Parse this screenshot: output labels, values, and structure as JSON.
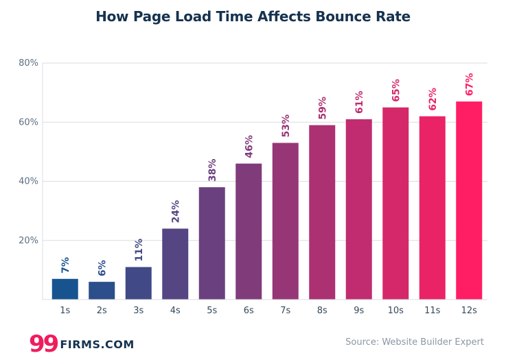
{
  "colors": {
    "title": "#16324f",
    "grid": "#d8dde2",
    "bar_start": "#17538f",
    "bar_end": "#ff1e63",
    "logo_accent": "#ef1d5d",
    "source": "#8b97a3"
  },
  "chart_data": {
    "type": "bar",
    "title": "How Page Load Time Affects Bounce Rate",
    "xlabel": "",
    "ylabel": "",
    "categories": [
      "1s",
      "2s",
      "3s",
      "4s",
      "5s",
      "6s",
      "7s",
      "8s",
      "9s",
      "10s",
      "11s",
      "12s"
    ],
    "values": [
      7,
      6,
      11,
      24,
      38,
      46,
      53,
      59,
      61,
      65,
      62,
      67
    ],
    "value_labels": [
      "7%",
      "6%",
      "11%",
      "24%",
      "38%",
      "46%",
      "53%",
      "59%",
      "61%",
      "65%",
      "62%",
      "67%"
    ],
    "ylim": [
      0,
      80
    ],
    "yticks": [
      20,
      40,
      60,
      80
    ],
    "ytick_labels": [
      "20%",
      "40%",
      "60%",
      "80%"
    ],
    "grid": true
  },
  "logo": {
    "mark": "99",
    "text": "FIRMS.COM"
  },
  "source": "Source: Website Builder Expert"
}
